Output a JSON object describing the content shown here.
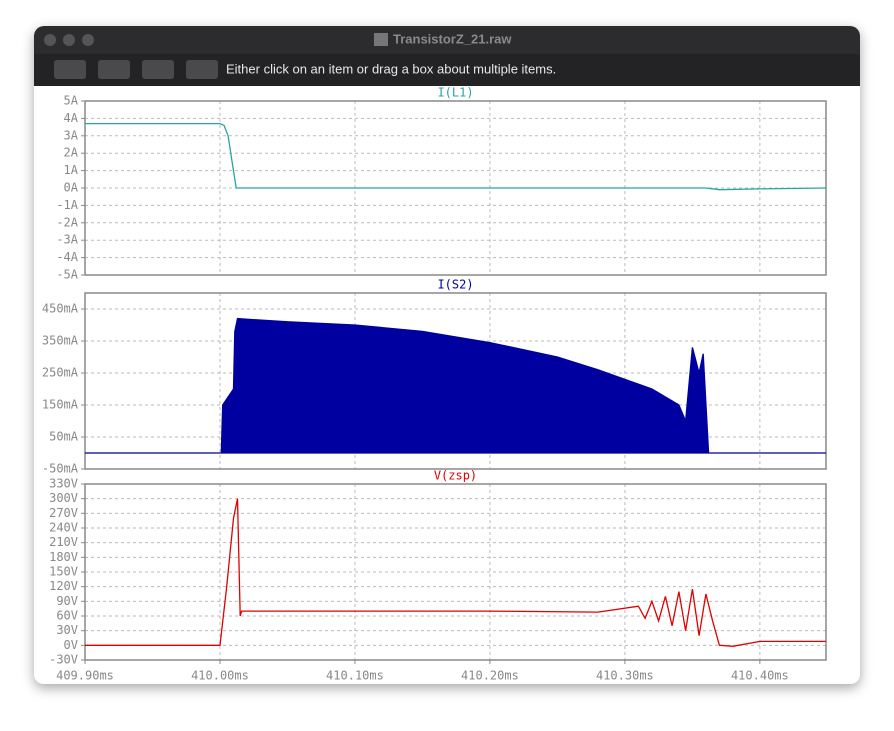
{
  "window": {
    "title": "TransistorZ_21.raw"
  },
  "toolbar": {
    "hint": "Either click on an item or drag a box about multiple items."
  },
  "chart_data": [
    {
      "type": "line",
      "grid": true,
      "xlim": [
        409.9,
        410.449
      ],
      "ylim": [
        -5,
        5
      ],
      "yticks": [
        {
          "value": -5,
          "label": "-5A"
        },
        {
          "value": -4,
          "label": "-4A"
        },
        {
          "value": -3,
          "label": "-3A"
        },
        {
          "value": -2,
          "label": "-2A"
        },
        {
          "value": -1,
          "label": "-1A"
        },
        {
          "value": 0,
          "label": "0A"
        },
        {
          "value": 1,
          "label": "1A"
        },
        {
          "value": 2,
          "label": "2A"
        },
        {
          "value": 3,
          "label": "3A"
        },
        {
          "value": 4,
          "label": "4A"
        },
        {
          "value": 5,
          "label": "5A"
        }
      ],
      "x": [
        409.9,
        410.0,
        410.003,
        410.006,
        410.009,
        410.012,
        410.2,
        410.36,
        410.37,
        410.4,
        410.449
      ],
      "series": [
        {
          "name": "I(L1)",
          "color": "#2aa3a3",
          "values": [
            3.7,
            3.7,
            3.6,
            3.0,
            1.5,
            0,
            0,
            0,
            -0.1,
            -0.05,
            0
          ]
        }
      ]
    },
    {
      "type": "area",
      "grid": true,
      "xlim": [
        409.9,
        410.449
      ],
      "ylim": [
        -50,
        500
      ],
      "yticks": [
        {
          "value": -50,
          "label": "-50mA"
        },
        {
          "value": 50,
          "label": "50mA"
        },
        {
          "value": 150,
          "label": "150mA"
        },
        {
          "value": 250,
          "label": "250mA"
        },
        {
          "value": 350,
          "label": "350mA"
        },
        {
          "value": 450,
          "label": "450mA"
        }
      ],
      "x": [
        409.9,
        410.001,
        410.002,
        410.01,
        410.011,
        410.013,
        410.05,
        410.1,
        410.15,
        410.2,
        410.25,
        410.28,
        410.3,
        410.32,
        410.34,
        410.345,
        410.35,
        410.355,
        410.358,
        410.362,
        410.449
      ],
      "series": [
        {
          "name": "I(S2)",
          "color": "#0000a0",
          "values": [
            0,
            0,
            150,
            200,
            380,
            420,
            410,
            400,
            380,
            345,
            300,
            260,
            230,
            200,
            150,
            100,
            330,
            250,
            310,
            0,
            0
          ]
        }
      ]
    },
    {
      "type": "line",
      "grid": true,
      "xlim": [
        409.9,
        410.449
      ],
      "ylim": [
        -30,
        330
      ],
      "xticks": [
        {
          "value": 409.9,
          "label": "409.90ms"
        },
        {
          "value": 410.0,
          "label": "410.00ms"
        },
        {
          "value": 410.1,
          "label": "410.10ms"
        },
        {
          "value": 410.2,
          "label": "410.20ms"
        },
        {
          "value": 410.3,
          "label": "410.30ms"
        },
        {
          "value": 410.4,
          "label": "410.40ms"
        }
      ],
      "yticks": [
        {
          "value": -30,
          "label": "-30V"
        },
        {
          "value": 0,
          "label": "0V"
        },
        {
          "value": 30,
          "label": "30V"
        },
        {
          "value": 60,
          "label": "60V"
        },
        {
          "value": 90,
          "label": "90V"
        },
        {
          "value": 120,
          "label": "120V"
        },
        {
          "value": 150,
          "label": "150V"
        },
        {
          "value": 180,
          "label": "180V"
        },
        {
          "value": 210,
          "label": "210V"
        },
        {
          "value": 240,
          "label": "240V"
        },
        {
          "value": 270,
          "label": "270V"
        },
        {
          "value": 300,
          "label": "300V"
        },
        {
          "value": 330,
          "label": "330V"
        }
      ],
      "x": [
        409.9,
        410.0,
        410.005,
        410.01,
        410.013,
        410.015,
        410.016,
        410.1,
        410.2,
        410.28,
        410.31,
        410.315,
        410.32,
        410.325,
        410.33,
        410.335,
        410.34,
        410.345,
        410.35,
        410.355,
        410.36,
        410.365,
        410.37,
        410.38,
        410.4,
        410.449
      ],
      "series": [
        {
          "name": "V(zsp)",
          "color": "#e00000",
          "values": [
            0,
            0,
            120,
            260,
            300,
            60,
            70,
            70,
            70,
            68,
            80,
            55,
            90,
            50,
            100,
            40,
            110,
            30,
            115,
            20,
            105,
            50,
            0,
            -2,
            8,
            8
          ]
        }
      ]
    }
  ]
}
